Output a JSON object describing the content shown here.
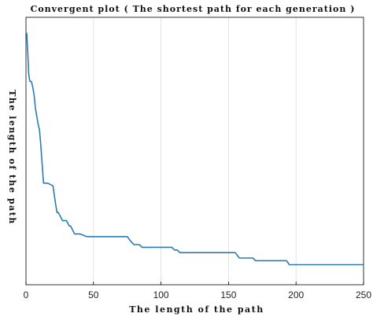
{
  "chart_data": {
    "type": "line",
    "title": "Convergent plot ( The shortest path for each generation )",
    "xlabel": "The length of the path",
    "ylabel": "The length of the path",
    "xlim": [
      0,
      250
    ],
    "ylim": [
      0,
      100
    ],
    "xticks": [
      "0",
      "50",
      "100",
      "150",
      "200",
      "250"
    ],
    "xtick_values": [
      0,
      50,
      100,
      150,
      200,
      250
    ],
    "yticks_shown": false,
    "grid": "vertical",
    "line_color": "#2b7bb0",
    "series": [
      {
        "x": [
          0,
          0.6,
          1,
          1.5,
          2,
          2.5,
          3,
          3.5,
          4,
          5,
          6,
          7,
          8,
          9,
          10,
          11,
          12,
          13,
          14,
          15,
          16,
          20,
          22,
          23,
          24,
          26,
          27,
          30,
          32,
          33,
          35,
          36,
          40,
          45,
          50,
          60,
          75,
          78,
          80,
          84,
          86,
          90,
          100,
          108,
          110,
          112,
          114,
          120,
          140,
          155,
          158,
          160,
          168,
          170,
          193,
          195,
          215,
          250
        ],
        "y": [
          94,
          94,
          90,
          85,
          79,
          77,
          76,
          76,
          76,
          74,
          71,
          66,
          63,
          60,
          58,
          52,
          45,
          38,
          38,
          38,
          38,
          37,
          30,
          27,
          27,
          25,
          24,
          24,
          22,
          22,
          20,
          19,
          19,
          18,
          18,
          18,
          18,
          16,
          15,
          15,
          14,
          14,
          14,
          14,
          13,
          13,
          12,
          12,
          12,
          12,
          10,
          10,
          10,
          9,
          9,
          7.5,
          7.5,
          7.5
        ]
      }
    ]
  }
}
